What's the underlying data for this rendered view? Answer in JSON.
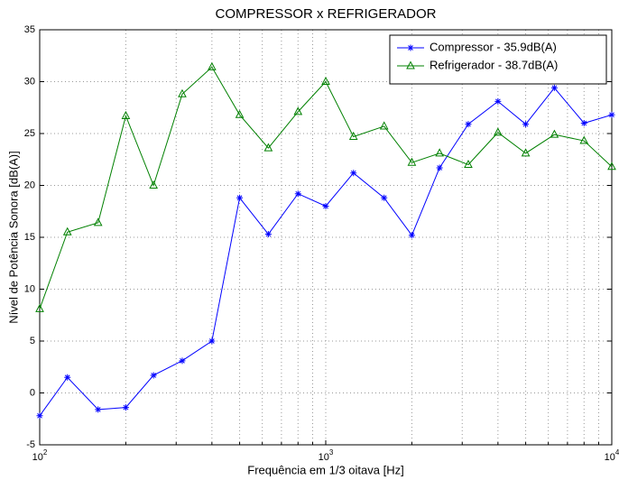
{
  "chart_data": {
    "type": "line",
    "title": "COMPRESSOR x REFRIGERADOR",
    "xlabel": "Frequência em 1/3 oitava [Hz]",
    "ylabel": "Nível de Potência Sonora [dB(A)]",
    "x": [
      100,
      125,
      160,
      200,
      250,
      315,
      400,
      500,
      630,
      800,
      1000,
      1250,
      1600,
      2000,
      2500,
      3150,
      4000,
      5000,
      6300,
      8000,
      10000
    ],
    "series": [
      {
        "name": "Compressor - 35.9dB(A)",
        "color": "#0000ff",
        "marker": "star",
        "values": [
          -2.2,
          1.5,
          -1.6,
          -1.4,
          1.7,
          3.1,
          5.0,
          18.8,
          15.3,
          19.2,
          18.0,
          21.2,
          18.8,
          15.2,
          21.7,
          25.9,
          28.1,
          25.9,
          29.4,
          26.0,
          26.8
        ]
      },
      {
        "name": "Refrigerador - 38.7dB(A)",
        "color": "#008000",
        "marker": "triangle",
        "values": [
          8.1,
          15.5,
          16.4,
          26.7,
          20.0,
          28.8,
          31.4,
          26.8,
          23.6,
          27.1,
          30.0,
          24.7,
          25.7,
          22.2,
          23.1,
          22.0,
          25.1,
          23.1,
          24.9,
          24.3,
          21.8
        ]
      }
    ],
    "xscale": "log",
    "xlim": [
      100,
      10000
    ],
    "xticks": [
      {
        "value": 100,
        "label": "10",
        "power": "2"
      },
      {
        "value": 1000,
        "label": "10",
        "power": "3"
      },
      {
        "value": 10000,
        "label": "10",
        "power": "4"
      }
    ],
    "xminorticks": [
      200,
      300,
      400,
      500,
      600,
      700,
      800,
      900,
      2000,
      3000,
      4000,
      5000,
      6000,
      7000,
      8000,
      9000
    ],
    "ylim": [
      -5,
      35
    ],
    "yticks": [
      -5,
      0,
      5,
      10,
      15,
      20,
      25,
      30,
      35
    ],
    "grid": true,
    "legend": "upper right"
  }
}
